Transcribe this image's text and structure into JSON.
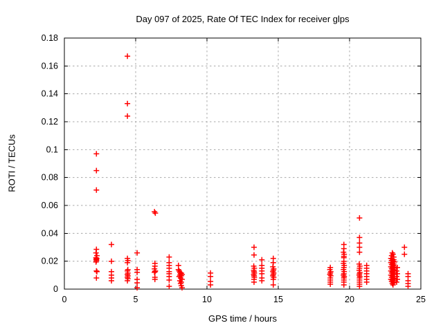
{
  "title": "Day 097 of 2025, Rate Of TEC Index for receiver glps",
  "chart_data": {
    "type": "scatter",
    "title": "Day 097 of 2025, Rate Of TEC Index for receiver glps",
    "xlabel": "GPS time / hours",
    "ylabel": "ROTI / TECUs",
    "xlim": [
      0,
      25
    ],
    "ylim": [
      0,
      0.18
    ],
    "xticks": [
      0,
      5,
      10,
      15,
      20,
      25
    ],
    "xtick_labels": [
      "0",
      "5",
      "10",
      "15",
      "20",
      "25"
    ],
    "yticks": [
      0,
      0.02,
      0.04,
      0.06,
      0.08,
      0.1,
      0.12,
      0.14,
      0.16,
      0.18
    ],
    "ytick_labels": [
      "0",
      "0.02",
      "0.04",
      "0.06",
      "0.08",
      "0.1",
      "0.12",
      "0.14",
      "0.16",
      "0.18"
    ],
    "grid": true,
    "legend_position": "none",
    "marker": "plus",
    "marker_color": "#ff0000",
    "grid_color": "#a8a8a8",
    "border_color": "#000000",
    "series": [
      {
        "name": "ROTI",
        "points": [
          [
            2.25,
            0.097
          ],
          [
            2.25,
            0.085
          ],
          [
            2.25,
            0.071
          ],
          [
            2.25,
            0.0285
          ],
          [
            2.22,
            0.026
          ],
          [
            2.28,
            0.024
          ],
          [
            2.22,
            0.0225
          ],
          [
            2.27,
            0.022
          ],
          [
            2.23,
            0.0215
          ],
          [
            2.25,
            0.021
          ],
          [
            2.25,
            0.0205
          ],
          [
            2.22,
            0.0195
          ],
          [
            2.25,
            0.013
          ],
          [
            2.28,
            0.0125
          ],
          [
            2.25,
            0.008
          ],
          [
            3.3,
            0.032
          ],
          [
            3.3,
            0.02
          ],
          [
            3.3,
            0.0125
          ],
          [
            3.3,
            0.01
          ],
          [
            3.3,
            0.008
          ],
          [
            3.3,
            0.006
          ],
          [
            4.42,
            0.167
          ],
          [
            4.42,
            0.133
          ],
          [
            4.42,
            0.124
          ],
          [
            4.42,
            0.022
          ],
          [
            4.45,
            0.0205
          ],
          [
            4.42,
            0.019
          ],
          [
            4.45,
            0.014
          ],
          [
            4.42,
            0.013
          ],
          [
            4.45,
            0.0115
          ],
          [
            4.42,
            0.0105
          ],
          [
            4.45,
            0.0095
          ],
          [
            4.42,
            0.0085
          ],
          [
            4.45,
            0.0075
          ],
          [
            4.42,
            0.006
          ],
          [
            5.1,
            0.026
          ],
          [
            5.1,
            0.014
          ],
          [
            5.1,
            0.012
          ],
          [
            5.1,
            0.007
          ],
          [
            5.1,
            0.0045
          ],
          [
            5.1,
            0.001
          ],
          [
            6.32,
            0.0555
          ],
          [
            6.38,
            0.0545
          ],
          [
            6.35,
            0.0185
          ],
          [
            6.35,
            0.0165
          ],
          [
            6.32,
            0.0145
          ],
          [
            6.38,
            0.013
          ],
          [
            6.35,
            0.0125
          ],
          [
            6.32,
            0.012
          ],
          [
            6.35,
            0.0085
          ],
          [
            6.35,
            0.007
          ],
          [
            7.35,
            0.023
          ],
          [
            7.35,
            0.019
          ],
          [
            7.35,
            0.017
          ],
          [
            7.35,
            0.015
          ],
          [
            7.35,
            0.0125
          ],
          [
            7.35,
            0.011
          ],
          [
            7.35,
            0.009
          ],
          [
            7.35,
            0.0065
          ],
          [
            7.35,
            0.002
          ],
          [
            8.0,
            0.017
          ],
          [
            8.0,
            0.014
          ],
          [
            8.05,
            0.013
          ],
          [
            8.1,
            0.012
          ],
          [
            8.2,
            0.0115
          ],
          [
            8.15,
            0.011
          ],
          [
            8.25,
            0.0105
          ],
          [
            8.1,
            0.01
          ],
          [
            8.2,
            0.0095
          ],
          [
            8.05,
            0.009
          ],
          [
            8.15,
            0.008
          ],
          [
            8.25,
            0.007
          ],
          [
            8.1,
            0.006
          ],
          [
            8.2,
            0.005
          ],
          [
            8.15,
            0.004
          ],
          [
            8.2,
            0.0025
          ],
          [
            8.25,
            0.001
          ],
          [
            10.25,
            0.0115
          ],
          [
            10.25,
            0.009
          ],
          [
            10.25,
            0.0055
          ],
          [
            10.25,
            0.003
          ],
          [
            13.3,
            0.03
          ],
          [
            13.3,
            0.0245
          ],
          [
            13.28,
            0.0165
          ],
          [
            13.32,
            0.015
          ],
          [
            13.28,
            0.0135
          ],
          [
            13.3,
            0.0125
          ],
          [
            13.32,
            0.0115
          ],
          [
            13.28,
            0.0105
          ],
          [
            13.3,
            0.0095
          ],
          [
            13.32,
            0.0085
          ],
          [
            13.3,
            0.007
          ],
          [
            13.3,
            0.005
          ],
          [
            13.85,
            0.021
          ],
          [
            13.85,
            0.017
          ],
          [
            13.85,
            0.015
          ],
          [
            13.85,
            0.013
          ],
          [
            13.85,
            0.011
          ],
          [
            13.85,
            0.008
          ],
          [
            13.85,
            0.006
          ],
          [
            14.65,
            0.022
          ],
          [
            14.65,
            0.019
          ],
          [
            14.62,
            0.016
          ],
          [
            14.68,
            0.0145
          ],
          [
            14.65,
            0.0135
          ],
          [
            14.62,
            0.0125
          ],
          [
            14.68,
            0.0115
          ],
          [
            14.65,
            0.0105
          ],
          [
            14.62,
            0.0095
          ],
          [
            14.68,
            0.0085
          ],
          [
            14.65,
            0.007
          ],
          [
            14.65,
            0.003
          ],
          [
            18.65,
            0.0155
          ],
          [
            18.62,
            0.014
          ],
          [
            18.68,
            0.0125
          ],
          [
            18.65,
            0.0115
          ],
          [
            18.62,
            0.0105
          ],
          [
            18.68,
            0.0095
          ],
          [
            18.65,
            0.008
          ],
          [
            18.65,
            0.0065
          ],
          [
            18.65,
            0.005
          ],
          [
            18.65,
            0.0035
          ],
          [
            19.6,
            0.032
          ],
          [
            19.6,
            0.029
          ],
          [
            19.58,
            0.0265
          ],
          [
            19.62,
            0.025
          ],
          [
            19.6,
            0.0235
          ],
          [
            19.6,
            0.0225
          ],
          [
            19.6,
            0.02
          ],
          [
            19.58,
            0.0185
          ],
          [
            19.62,
            0.017
          ],
          [
            19.6,
            0.0155
          ],
          [
            19.58,
            0.014
          ],
          [
            19.62,
            0.0125
          ],
          [
            19.6,
            0.011
          ],
          [
            19.58,
            0.01
          ],
          [
            19.62,
            0.009
          ],
          [
            19.6,
            0.008
          ],
          [
            19.6,
            0.0065
          ],
          [
            19.6,
            0.005
          ],
          [
            19.6,
            0.003
          ],
          [
            20.7,
            0.051
          ],
          [
            20.7,
            0.037
          ],
          [
            20.7,
            0.033
          ],
          [
            20.7,
            0.03
          ],
          [
            20.7,
            0.0265
          ],
          [
            20.68,
            0.018
          ],
          [
            20.72,
            0.0165
          ],
          [
            20.7,
            0.015
          ],
          [
            20.68,
            0.0135
          ],
          [
            20.72,
            0.012
          ],
          [
            20.7,
            0.011
          ],
          [
            20.68,
            0.01
          ],
          [
            20.72,
            0.009
          ],
          [
            20.7,
            0.008
          ],
          [
            20.7,
            0.0065
          ],
          [
            20.7,
            0.005
          ],
          [
            20.7,
            0.0035
          ],
          [
            20.7,
            0.002
          ],
          [
            21.2,
            0.017
          ],
          [
            21.2,
            0.015
          ],
          [
            21.2,
            0.013
          ],
          [
            21.2,
            0.011
          ],
          [
            21.2,
            0.009
          ],
          [
            21.2,
            0.007
          ],
          [
            21.2,
            0.005
          ],
          [
            23.0,
            0.026
          ],
          [
            23.05,
            0.025
          ],
          [
            22.95,
            0.024
          ],
          [
            23.1,
            0.023
          ],
          [
            22.9,
            0.022
          ],
          [
            23.0,
            0.0215
          ],
          [
            23.1,
            0.021
          ],
          [
            22.95,
            0.0205
          ],
          [
            23.05,
            0.02
          ],
          [
            23.15,
            0.0195
          ],
          [
            22.9,
            0.019
          ],
          [
            23.0,
            0.0185
          ],
          [
            23.1,
            0.018
          ],
          [
            22.95,
            0.0175
          ],
          [
            23.05,
            0.017
          ],
          [
            23.15,
            0.0165
          ],
          [
            22.9,
            0.016
          ],
          [
            23.0,
            0.0155
          ],
          [
            23.1,
            0.015
          ],
          [
            22.95,
            0.0145
          ],
          [
            23.05,
            0.014
          ],
          [
            23.15,
            0.0135
          ],
          [
            22.9,
            0.013
          ],
          [
            23.0,
            0.0125
          ],
          [
            23.1,
            0.012
          ],
          [
            22.95,
            0.0115
          ],
          [
            23.05,
            0.011
          ],
          [
            23.15,
            0.0105
          ],
          [
            22.9,
            0.01
          ],
          [
            23.0,
            0.0095
          ],
          [
            23.1,
            0.009
          ],
          [
            22.95,
            0.0085
          ],
          [
            23.05,
            0.008
          ],
          [
            23.15,
            0.0075
          ],
          [
            22.9,
            0.007
          ],
          [
            23.0,
            0.0065
          ],
          [
            23.1,
            0.006
          ],
          [
            22.95,
            0.0055
          ],
          [
            23.05,
            0.005
          ],
          [
            23.1,
            0.0045
          ],
          [
            23.0,
            0.004
          ],
          [
            23.05,
            0.003
          ],
          [
            23.35,
            0.0155
          ],
          [
            23.3,
            0.013
          ],
          [
            23.35,
            0.011
          ],
          [
            23.3,
            0.009
          ],
          [
            23.35,
            0.007
          ],
          [
            23.3,
            0.005
          ],
          [
            23.85,
            0.03
          ],
          [
            23.85,
            0.025
          ],
          [
            24.1,
            0.011
          ],
          [
            24.1,
            0.009
          ],
          [
            24.1,
            0.006
          ],
          [
            24.1,
            0.004
          ],
          [
            24.1,
            0.002
          ]
        ]
      }
    ]
  }
}
